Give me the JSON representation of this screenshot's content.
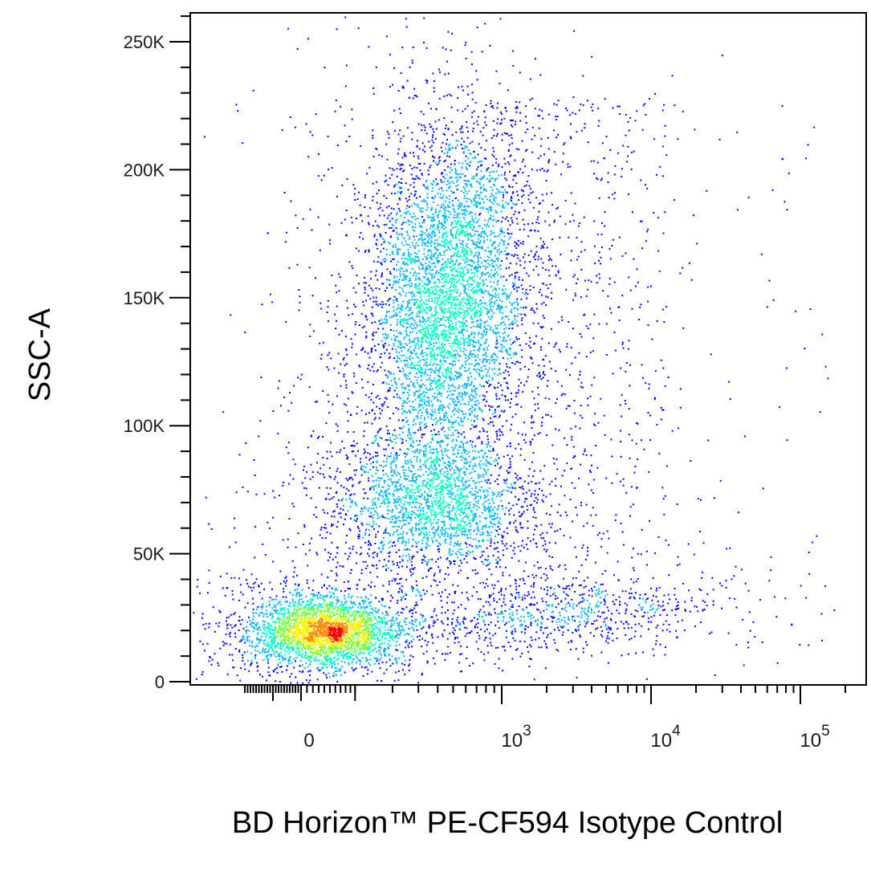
{
  "chart_data": {
    "type": "scatter",
    "subtype": "flow-cytometry-density-dot-plot",
    "xlabel": "BD Horizon™ PE-CF594 Isotype Control",
    "ylabel": "SSC-A",
    "x_scale": "biexponential",
    "y_scale": "linear",
    "ylim": [
      0,
      262144
    ],
    "xlim": [
      -200,
      262144
    ],
    "grid": false,
    "legend": "none",
    "y_ticks": [
      {
        "value": 0,
        "label": "0"
      },
      {
        "value": 50000,
        "label": "50K"
      },
      {
        "value": 100000,
        "label": "100K"
      },
      {
        "value": 150000,
        "label": "150K"
      },
      {
        "value": 200000,
        "label": "200K"
      },
      {
        "value": 250000,
        "label": "250K"
      }
    ],
    "x_ticks": [
      {
        "value": 0,
        "label": "0",
        "exp": ""
      },
      {
        "value": 1000,
        "label": "10",
        "exp": "3"
      },
      {
        "value": 10000,
        "label": "10",
        "exp": "4"
      },
      {
        "value": 100000,
        "label": "10",
        "exp": "5"
      }
    ],
    "density_colors": [
      "#0000ff",
      "#00b4ff",
      "#00ffc8",
      "#7cff3c",
      "#fff000",
      "#ff8c00",
      "#ff0000"
    ],
    "populations": [
      {
        "name": "",
        "x_center": 40,
        "y_center": 20000,
        "events": 3200
      },
      {
        "name": "",
        "x_center": 450,
        "y_center": 150000,
        "events": 5200
      },
      {
        "name": "",
        "x_center": 380,
        "y_center": 70000,
        "events": 2200
      },
      {
        "name": "",
        "x_center": 2500,
        "y_center": 27000,
        "events": 700
      }
    ]
  }
}
